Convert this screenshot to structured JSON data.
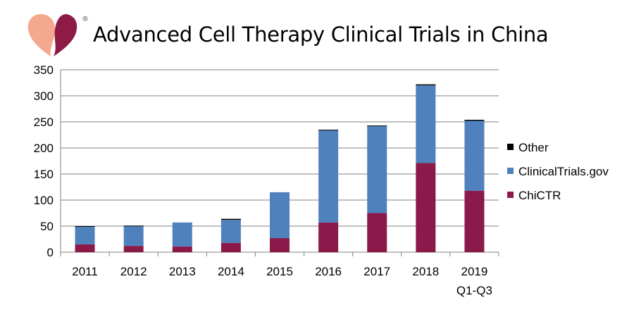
{
  "header": {
    "title": "Advanced Cell Therapy Clinical Trials in China",
    "logo_mark": "®"
  },
  "colors": {
    "chictr": "#8B1A4A",
    "clinicaltrials": "#4F81BD",
    "other": "#000000",
    "grid": "#808080",
    "logo_left": "#F4A98E",
    "logo_right": "#8E1B45"
  },
  "chart_data": {
    "type": "bar",
    "stacked": true,
    "title": "Advanced Cell Therapy Clinical Trials in China",
    "categories": [
      "2011",
      "2012",
      "2013",
      "2014",
      "2015",
      "2016",
      "2017",
      "2018",
      "2019\nQ1-Q3"
    ],
    "series": [
      {
        "name": "ChiCTR",
        "color": "#8B1A4A",
        "values": [
          15,
          12,
          11,
          18,
          27,
          57,
          75,
          171,
          118
        ]
      },
      {
        "name": "ClinicalTrials.gov",
        "color": "#4F81BD",
        "values": [
          34,
          38,
          46,
          44,
          88,
          177,
          167,
          149,
          134
        ]
      },
      {
        "name": "Other",
        "color": "#000000",
        "values": [
          1,
          1,
          0,
          2,
          0,
          1,
          1,
          2,
          2
        ]
      }
    ],
    "ylim": [
      0,
      350
    ],
    "yticks": [
      0,
      50,
      100,
      150,
      200,
      250,
      300,
      350
    ],
    "grid": true,
    "legend": "right",
    "xlabel": "",
    "ylabel": ""
  }
}
